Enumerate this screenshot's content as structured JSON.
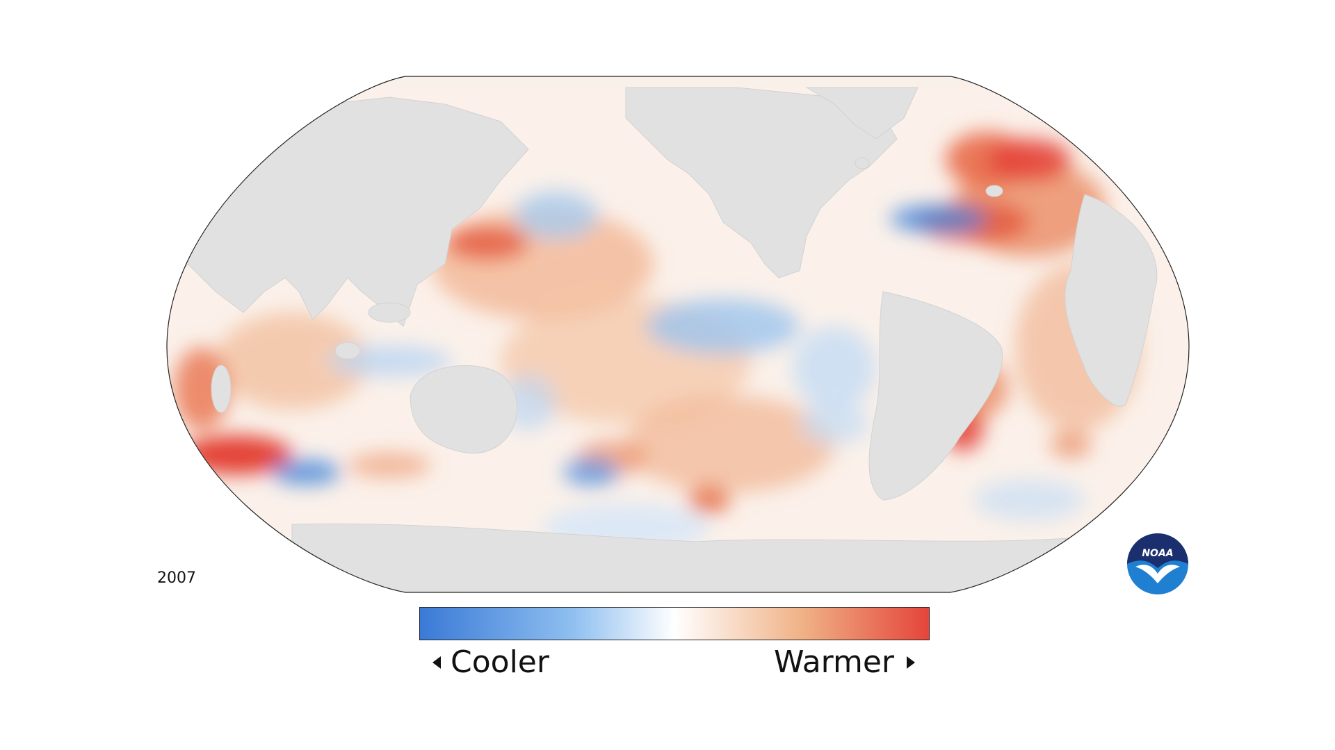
{
  "year": "2007",
  "legend": {
    "low_label": "Cooler",
    "high_label": "Warmer",
    "colors": [
      "#3a7ad6",
      "#8fbff0",
      "#ffffff",
      "#f0b286",
      "#e4453a"
    ]
  },
  "logo": {
    "text": "NOAA",
    "icon": "noaa-logo-icon"
  },
  "colors": {
    "land": "#e1e1e1",
    "warm": "#e85a3c",
    "cool": "#3f84da",
    "outline": "#222222"
  }
}
